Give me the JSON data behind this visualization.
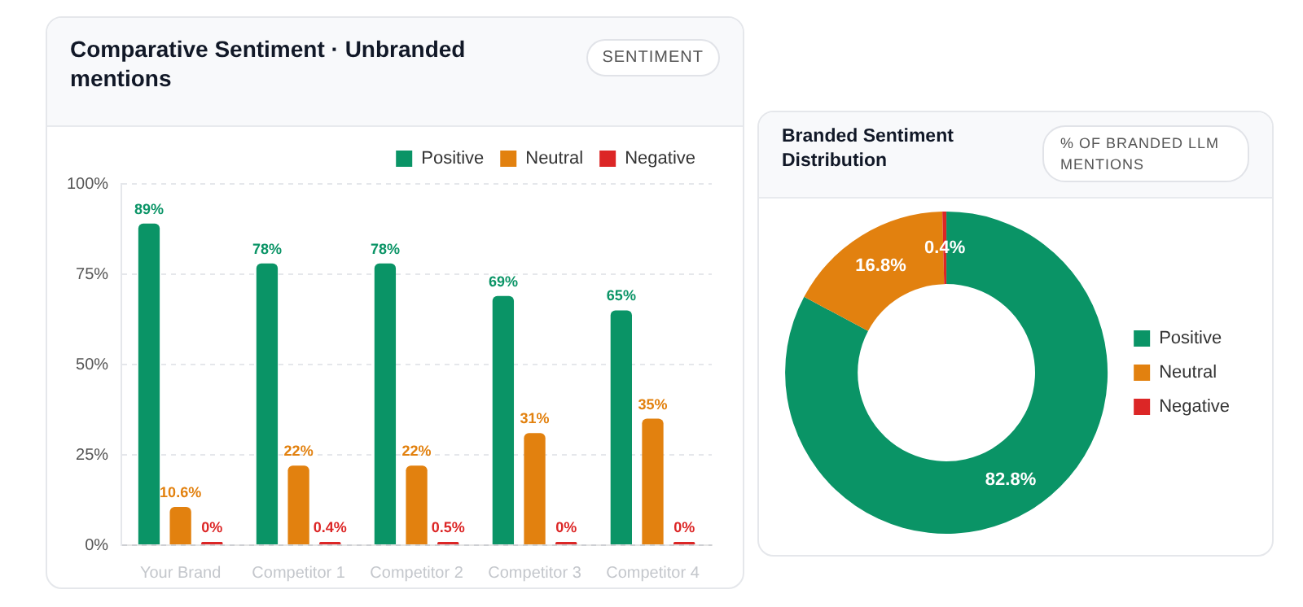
{
  "chart_data": [
    {
      "type": "bar",
      "title": "Comparative Sentiment · Unbranded mentions",
      "subtitle": "SENTIMENT",
      "categories": [
        "Your Brand",
        "Competitor 1",
        "Competitor 2",
        "Competitor 3",
        "Competitor 4"
      ],
      "series": [
        {
          "name": "Positive",
          "color": "#0a9466",
          "values": [
            89,
            78,
            78,
            69,
            65
          ],
          "value_labels": [
            "89%",
            "78%",
            "78%",
            "69%",
            "65%"
          ]
        },
        {
          "name": "Neutral",
          "color": "#e2810f",
          "values": [
            10.6,
            22,
            22,
            31,
            35
          ],
          "value_labels": [
            "10.6%",
            "22%",
            "22%",
            "31%",
            "35%"
          ]
        },
        {
          "name": "Negative",
          "color": "#dc2626",
          "values": [
            0,
            0.4,
            0.5,
            0,
            0
          ],
          "value_labels": [
            "0%",
            "0.4%",
            "0.5%",
            "0%",
            "0%"
          ]
        }
      ],
      "ylim": [
        0,
        100
      ],
      "yticks": [
        {
          "value": 0,
          "label": "0%"
        },
        {
          "value": 25,
          "label": "25%"
        },
        {
          "value": 50,
          "label": "50%"
        },
        {
          "value": 75,
          "label": "75%"
        },
        {
          "value": 100,
          "label": "100%"
        }
      ],
      "grid": "y",
      "legend": "top right"
    },
    {
      "type": "donut",
      "title": "Branded Sentiment Distribution",
      "subtitle": "% OF BRANDED LLM MENTIONS",
      "categories": [
        "Positive",
        "Neutral",
        "Negative"
      ],
      "values": [
        82.8,
        16.8,
        0.4
      ],
      "colors": [
        "#0a9466",
        "#e2810f",
        "#dc2626"
      ],
      "value_labels": [
        "82.8%",
        "16.8%",
        "0.4%"
      ],
      "legend": "right"
    }
  ]
}
